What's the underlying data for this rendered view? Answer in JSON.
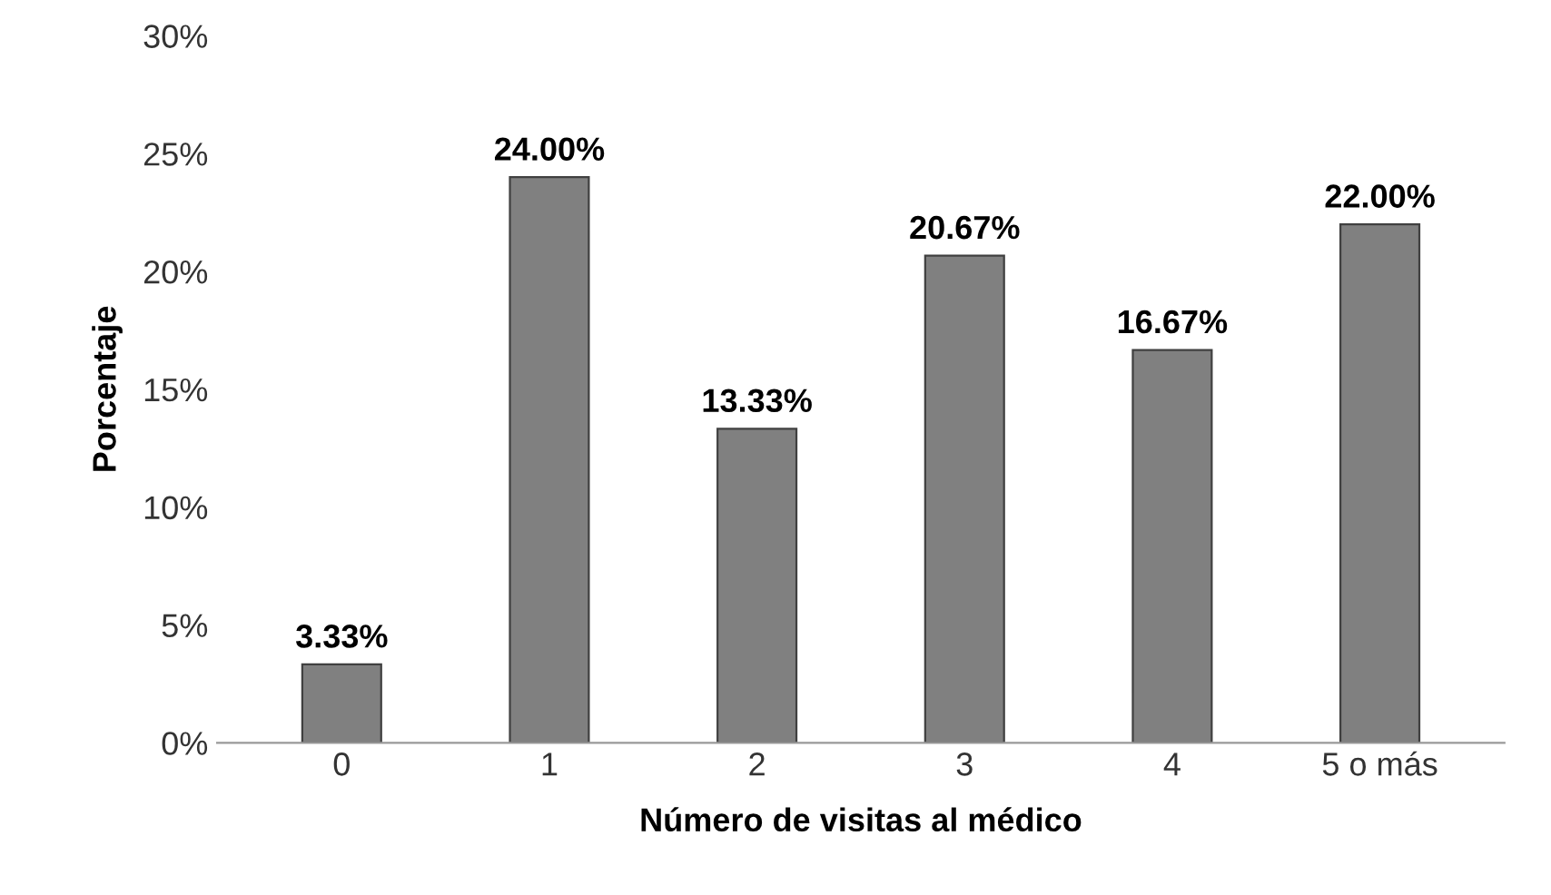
{
  "chart_data": {
    "type": "bar",
    "xlabel": "Número de visitas al médico",
    "ylabel": "Porcentaje",
    "categories": [
      "0",
      "1",
      "2",
      "3",
      "4",
      "5 o más"
    ],
    "values": [
      3.33,
      24.0,
      13.33,
      20.67,
      16.67,
      22.0
    ],
    "value_labels": [
      "3.33%",
      "24.00%",
      "13.33%",
      "20.67%",
      "16.67%",
      "22.00%"
    ],
    "color": "#808080",
    "ylim": [
      0,
      30
    ],
    "yticks": [
      {
        "value": 0,
        "label": "0%"
      },
      {
        "value": 5,
        "label": "5%"
      },
      {
        "value": 10,
        "label": "10%"
      },
      {
        "value": 15,
        "label": "15%"
      },
      {
        "value": 20,
        "label": "20%"
      },
      {
        "value": 25,
        "label": "25%"
      },
      {
        "value": 30,
        "label": "30%"
      }
    ],
    "grid": false,
    "legend": false
  }
}
